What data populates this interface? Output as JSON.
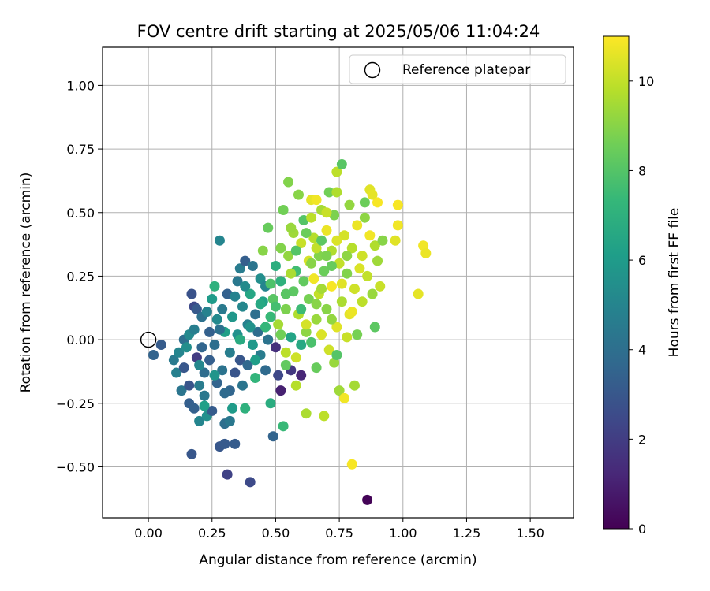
{
  "chart_data": {
    "type": "scatter",
    "title": "FOV centre drift starting at 2025/05/06 11:04:24",
    "xlabel": "Angular distance from reference (arcmin)",
    "ylabel": "Rotation from reference (arcmin)",
    "xlim": [
      -0.18,
      1.67
    ],
    "ylim": [
      -0.7,
      1.15
    ],
    "xticks": [
      0.0,
      0.25,
      0.5,
      0.75,
      1.0,
      1.25,
      1.5
    ],
    "xtick_labels": [
      "0.00",
      "0.25",
      "0.50",
      "0.75",
      "1.00",
      "1.25",
      "1.50"
    ],
    "yticks": [
      -0.5,
      -0.25,
      0.0,
      0.25,
      0.5,
      0.75,
      1.0
    ],
    "ytick_labels": [
      "−0.50",
      "−0.25",
      "0.00",
      "0.25",
      "0.50",
      "0.75",
      "1.00"
    ],
    "grid": true,
    "legend": {
      "position": "top-right",
      "label": "Reference platepar"
    },
    "reference_point": {
      "x": 0.0,
      "y": 0.0
    },
    "colorbar": {
      "label": "Hours from first FF file",
      "min": 0,
      "max": 11,
      "ticks": [
        0,
        2,
        4,
        6,
        8,
        10
      ],
      "tick_labels": [
        "0",
        "2",
        "4",
        "6",
        "8",
        "10"
      ],
      "colormap": "viridis"
    },
    "colormap_stops": [
      "#440154",
      "#482878",
      "#3e4989",
      "#31688e",
      "#26828e",
      "#1f9e89",
      "#35b779",
      "#6ece58",
      "#b5de2b",
      "#fde725"
    ],
    "points": [
      {
        "x": 0.02,
        "y": -0.06,
        "h": 3.5
      },
      {
        "x": 0.05,
        "y": -0.02,
        "h": 3.2
      },
      {
        "x": 0.1,
        "y": -0.08,
        "h": 4.5
      },
      {
        "x": 0.11,
        "y": -0.13,
        "h": 4.8
      },
      {
        "x": 0.12,
        "y": -0.05,
        "h": 5.0
      },
      {
        "x": 0.13,
        "y": -0.2,
        "h": 4.3
      },
      {
        "x": 0.14,
        "y": 0.0,
        "h": 4.0
      },
      {
        "x": 0.14,
        "y": -0.11,
        "h": 3.0
      },
      {
        "x": 0.15,
        "y": -0.03,
        "h": 5.4
      },
      {
        "x": 0.16,
        "y": 0.02,
        "h": 5.2
      },
      {
        "x": 0.16,
        "y": -0.25,
        "h": 3.3
      },
      {
        "x": 0.17,
        "y": 0.18,
        "h": 2.8
      },
      {
        "x": 0.17,
        "y": -0.45,
        "h": 3.0
      },
      {
        "x": 0.18,
        "y": 0.13,
        "h": 2.5
      },
      {
        "x": 0.18,
        "y": -0.27,
        "h": 3.4
      },
      {
        "x": 0.19,
        "y": 0.12,
        "h": 3.1
      },
      {
        "x": 0.19,
        "y": -0.07,
        "h": 2.0
      },
      {
        "x": 0.2,
        "y": -0.18,
        "h": 4.6
      },
      {
        "x": 0.2,
        "y": -0.32,
        "h": 5.0
      },
      {
        "x": 0.21,
        "y": -0.03,
        "h": 3.6
      },
      {
        "x": 0.21,
        "y": 0.09,
        "h": 4.1
      },
      {
        "x": 0.22,
        "y": -0.13,
        "h": 3.9
      },
      {
        "x": 0.22,
        "y": -0.22,
        "h": 4.4
      },
      {
        "x": 0.23,
        "y": 0.11,
        "h": 4.9
      },
      {
        "x": 0.23,
        "y": -0.3,
        "h": 5.5
      },
      {
        "x": 0.24,
        "y": -0.08,
        "h": 3.3
      },
      {
        "x": 0.25,
        "y": 0.16,
        "h": 6.0
      },
      {
        "x": 0.25,
        "y": -0.28,
        "h": 3.2
      },
      {
        "x": 0.26,
        "y": 0.21,
        "h": 7.0
      },
      {
        "x": 0.26,
        "y": -0.02,
        "h": 4.0
      },
      {
        "x": 0.27,
        "y": -0.17,
        "h": 3.5
      },
      {
        "x": 0.27,
        "y": 0.08,
        "h": 5.2
      },
      {
        "x": 0.28,
        "y": -0.42,
        "h": 3.0
      },
      {
        "x": 0.28,
        "y": 0.39,
        "h": 5.0
      },
      {
        "x": 0.29,
        "y": -0.12,
        "h": 4.2
      },
      {
        "x": 0.29,
        "y": 0.12,
        "h": 4.5
      },
      {
        "x": 0.3,
        "y": -0.33,
        "h": 4.0
      },
      {
        "x": 0.3,
        "y": 0.03,
        "h": 6.2
      },
      {
        "x": 0.3,
        "y": -0.41,
        "h": 3.1
      },
      {
        "x": 0.31,
        "y": -0.53,
        "h": 2.2
      },
      {
        "x": 0.31,
        "y": 0.18,
        "h": 3.4
      },
      {
        "x": 0.32,
        "y": -0.05,
        "h": 4.7
      },
      {
        "x": 0.32,
        "y": -0.2,
        "h": 3.6
      },
      {
        "x": 0.33,
        "y": 0.09,
        "h": 5.8
      },
      {
        "x": 0.33,
        "y": -0.27,
        "h": 6.0
      },
      {
        "x": 0.34,
        "y": -0.41,
        "h": 3.2
      },
      {
        "x": 0.34,
        "y": -0.13,
        "h": 2.9
      },
      {
        "x": 0.35,
        "y": 0.23,
        "h": 4.4
      },
      {
        "x": 0.35,
        "y": 0.02,
        "h": 5.5
      },
      {
        "x": 0.36,
        "y": 0.28,
        "h": 4.6
      },
      {
        "x": 0.36,
        "y": -0.08,
        "h": 3.0
      },
      {
        "x": 0.37,
        "y": 0.13,
        "h": 5.1
      },
      {
        "x": 0.37,
        "y": -0.18,
        "h": 4.3
      },
      {
        "x": 0.38,
        "y": 0.31,
        "h": 3.3
      },
      {
        "x": 0.38,
        "y": -0.27,
        "h": 7.0
      },
      {
        "x": 0.39,
        "y": 0.06,
        "h": 4.8
      },
      {
        "x": 0.39,
        "y": -0.1,
        "h": 3.7
      },
      {
        "x": 0.4,
        "y": -0.56,
        "h": 2.5
      },
      {
        "x": 0.4,
        "y": 0.18,
        "h": 6.5
      },
      {
        "x": 0.41,
        "y": 0.29,
        "h": 4.3
      },
      {
        "x": 0.41,
        "y": -0.02,
        "h": 5.9
      },
      {
        "x": 0.42,
        "y": 0.1,
        "h": 4.0
      },
      {
        "x": 0.42,
        "y": -0.15,
        "h": 7.2
      },
      {
        "x": 0.43,
        "y": 0.03,
        "h": 3.9
      },
      {
        "x": 0.44,
        "y": 0.24,
        "h": 5.4
      },
      {
        "x": 0.44,
        "y": -0.06,
        "h": 4.6
      },
      {
        "x": 0.45,
        "y": 0.35,
        "h": 9.0
      },
      {
        "x": 0.45,
        "y": 0.15,
        "h": 6.3
      },
      {
        "x": 0.46,
        "y": -0.12,
        "h": 3.8
      },
      {
        "x": 0.46,
        "y": 0.21,
        "h": 5.0
      },
      {
        "x": 0.47,
        "y": 0.0,
        "h": 4.2
      },
      {
        "x": 0.47,
        "y": 0.44,
        "h": 8.4
      },
      {
        "x": 0.48,
        "y": -0.25,
        "h": 6.8
      },
      {
        "x": 0.48,
        "y": 0.09,
        "h": 7.4
      },
      {
        "x": 0.49,
        "y": -0.38,
        "h": 3.5
      },
      {
        "x": 0.49,
        "y": 0.16,
        "h": 8.1
      },
      {
        "x": 0.5,
        "y": -0.03,
        "h": 1.5
      },
      {
        "x": 0.5,
        "y": 0.29,
        "h": 6.9
      },
      {
        "x": 0.51,
        "y": -0.14,
        "h": 2.4
      },
      {
        "x": 0.51,
        "y": 0.06,
        "h": 9.5
      },
      {
        "x": 0.52,
        "y": 0.23,
        "h": 7.0
      },
      {
        "x": 0.52,
        "y": -0.2,
        "h": 1.0
      },
      {
        "x": 0.53,
        "y": 0.51,
        "h": 8.6
      },
      {
        "x": 0.53,
        "y": -0.34,
        "h": 7.4
      },
      {
        "x": 0.54,
        "y": 0.12,
        "h": 8.8
      },
      {
        "x": 0.54,
        "y": -0.05,
        "h": 9.9
      },
      {
        "x": 0.55,
        "y": 0.33,
        "h": 9.2
      },
      {
        "x": 0.55,
        "y": 0.62,
        "h": 8.9
      },
      {
        "x": 0.56,
        "y": 0.01,
        "h": 6.4
      },
      {
        "x": 0.56,
        "y": -0.12,
        "h": 1.8
      },
      {
        "x": 0.57,
        "y": 0.42,
        "h": 9.4
      },
      {
        "x": 0.57,
        "y": 0.19,
        "h": 8.2
      },
      {
        "x": 0.58,
        "y": -0.07,
        "h": 10.2
      },
      {
        "x": 0.58,
        "y": 0.27,
        "h": 7.6
      },
      {
        "x": 0.59,
        "y": 0.57,
        "h": 9.0
      },
      {
        "x": 0.59,
        "y": 0.1,
        "h": 9.7
      },
      {
        "x": 0.6,
        "y": -0.14,
        "h": 1.2
      },
      {
        "x": 0.6,
        "y": 0.38,
        "h": 10.1
      },
      {
        "x": 0.61,
        "y": 0.23,
        "h": 8.3
      },
      {
        "x": 0.61,
        "y": 0.47,
        "h": 8.0
      },
      {
        "x": 0.62,
        "y": 0.03,
        "h": 9.1
      },
      {
        "x": 0.62,
        "y": -0.29,
        "h": 9.6
      },
      {
        "x": 0.63,
        "y": 0.31,
        "h": 10.3
      },
      {
        "x": 0.63,
        "y": 0.16,
        "h": 8.7
      },
      {
        "x": 0.64,
        "y": 0.55,
        "h": 10.6
      },
      {
        "x": 0.64,
        "y": -0.01,
        "h": 7.8
      },
      {
        "x": 0.65,
        "y": 0.4,
        "h": 9.8
      },
      {
        "x": 0.65,
        "y": 0.24,
        "h": 10.8
      },
      {
        "x": 0.66,
        "y": 0.08,
        "h": 9.3
      },
      {
        "x": 0.66,
        "y": -0.11,
        "h": 8.4
      },
      {
        "x": 0.67,
        "y": 0.33,
        "h": 8.9
      },
      {
        "x": 0.67,
        "y": 0.18,
        "h": 10.0
      },
      {
        "x": 0.68,
        "y": 0.51,
        "h": 9.5
      },
      {
        "x": 0.68,
        "y": 0.02,
        "h": 10.4
      },
      {
        "x": 0.69,
        "y": -0.3,
        "h": 9.9
      },
      {
        "x": 0.69,
        "y": 0.27,
        "h": 8.5
      },
      {
        "x": 0.7,
        "y": 0.43,
        "h": 10.7
      },
      {
        "x": 0.7,
        "y": 0.12,
        "h": 9.0
      },
      {
        "x": 0.71,
        "y": 0.58,
        "h": 8.6
      },
      {
        "x": 0.71,
        "y": -0.04,
        "h": 10.2
      },
      {
        "x": 0.72,
        "y": 0.35,
        "h": 9.7
      },
      {
        "x": 0.72,
        "y": 0.21,
        "h": 10.9
      },
      {
        "x": 0.73,
        "y": -0.09,
        "h": 9.3
      },
      {
        "x": 0.73,
        "y": 0.49,
        "h": 8.8
      },
      {
        "x": 0.74,
        "y": 0.66,
        "h": 9.9
      },
      {
        "x": 0.74,
        "y": 0.05,
        "h": 10.5
      },
      {
        "x": 0.75,
        "y": -0.2,
        "h": 9.4
      },
      {
        "x": 0.75,
        "y": 0.3,
        "h": 10.0
      },
      {
        "x": 0.76,
        "y": 0.69,
        "h": 8.1
      },
      {
        "x": 0.76,
        "y": 0.15,
        "h": 9.6
      },
      {
        "x": 0.77,
        "y": -0.23,
        "h": 10.8
      },
      {
        "x": 0.77,
        "y": 0.41,
        "h": 10.3
      },
      {
        "x": 0.78,
        "y": 0.26,
        "h": 8.9
      },
      {
        "x": 0.78,
        "y": 0.01,
        "h": 10.1
      },
      {
        "x": 0.79,
        "y": 0.53,
        "h": 9.2
      },
      {
        "x": 0.79,
        "y": 0.1,
        "h": 10.6
      },
      {
        "x": 0.8,
        "y": -0.49,
        "h": 10.9
      },
      {
        "x": 0.8,
        "y": 0.36,
        "h": 9.8
      },
      {
        "x": 0.81,
        "y": 0.2,
        "h": 10.2
      },
      {
        "x": 0.81,
        "y": -0.18,
        "h": 9.5
      },
      {
        "x": 0.82,
        "y": 0.45,
        "h": 10.7
      },
      {
        "x": 0.82,
        "y": 0.02,
        "h": 8.7
      },
      {
        "x": 0.83,
        "y": 0.28,
        "h": 10.4
      },
      {
        "x": 0.84,
        "y": 0.15,
        "h": 9.9
      },
      {
        "x": 0.85,
        "y": 0.48,
        "h": 9.1
      },
      {
        "x": 0.85,
        "y": 0.54,
        "h": 8.5
      },
      {
        "x": 0.86,
        "y": -0.63,
        "h": 0.1
      },
      {
        "x": 0.86,
        "y": 0.25,
        "h": 10.0
      },
      {
        "x": 0.87,
        "y": 0.59,
        "h": 10.5
      },
      {
        "x": 0.87,
        "y": 0.41,
        "h": 10.8
      },
      {
        "x": 0.88,
        "y": 0.18,
        "h": 9.3
      },
      {
        "x": 0.88,
        "y": 0.57,
        "h": 10.6
      },
      {
        "x": 0.89,
        "y": 0.05,
        "h": 8.2
      },
      {
        "x": 0.89,
        "y": 0.37,
        "h": 9.7
      },
      {
        "x": 0.9,
        "y": 0.54,
        "h": 10.9
      },
      {
        "x": 0.9,
        "y": 0.31,
        "h": 9.4
      },
      {
        "x": 0.91,
        "y": 0.21,
        "h": 10.1
      },
      {
        "x": 0.92,
        "y": 0.39,
        "h": 9.0
      },
      {
        "x": 0.97,
        "y": 0.39,
        "h": 10.5
      },
      {
        "x": 0.98,
        "y": 0.45,
        "h": 10.8
      },
      {
        "x": 0.98,
        "y": 0.53,
        "h": 10.9
      },
      {
        "x": 1.06,
        "y": 0.18,
        "h": 10.6
      },
      {
        "x": 1.08,
        "y": 0.37,
        "h": 10.8
      },
      {
        "x": 1.09,
        "y": 0.34,
        "h": 10.7
      },
      {
        "x": 0.58,
        "y": 0.35,
        "h": 8.0
      },
      {
        "x": 0.6,
        "y": 0.12,
        "h": 7.5
      },
      {
        "x": 0.62,
        "y": 0.42,
        "h": 8.5
      },
      {
        "x": 0.64,
        "y": 0.3,
        "h": 9.0
      },
      {
        "x": 0.66,
        "y": 0.36,
        "h": 10.0
      },
      {
        "x": 0.68,
        "y": 0.2,
        "h": 9.5
      },
      {
        "x": 0.7,
        "y": 0.33,
        "h": 8.8
      },
      {
        "x": 0.72,
        "y": 0.08,
        "h": 9.2
      },
      {
        "x": 0.74,
        "y": 0.39,
        "h": 10.4
      },
      {
        "x": 0.56,
        "y": 0.26,
        "h": 9.6
      },
      {
        "x": 0.54,
        "y": 0.18,
        "h": 8.1
      },
      {
        "x": 0.52,
        "y": 0.36,
        "h": 8.9
      },
      {
        "x": 0.5,
        "y": 0.13,
        "h": 7.7
      },
      {
        "x": 0.48,
        "y": 0.22,
        "h": 7.9
      },
      {
        "x": 0.46,
        "y": 0.05,
        "h": 7.3
      },
      {
        "x": 0.44,
        "y": 0.14,
        "h": 6.6
      },
      {
        "x": 0.42,
        "y": -0.08,
        "h": 6.1
      },
      {
        "x": 0.4,
        "y": 0.05,
        "h": 5.6
      },
      {
        "x": 0.38,
        "y": 0.21,
        "h": 5.3
      },
      {
        "x": 0.36,
        "y": 0.0,
        "h": 6.7
      },
      {
        "x": 0.34,
        "y": 0.17,
        "h": 4.9
      },
      {
        "x": 0.32,
        "y": -0.32,
        "h": 4.4
      },
      {
        "x": 0.3,
        "y": -0.21,
        "h": 3.8
      },
      {
        "x": 0.28,
        "y": 0.04,
        "h": 4.1
      },
      {
        "x": 0.26,
        "y": -0.14,
        "h": 5.7
      },
      {
        "x": 0.24,
        "y": 0.03,
        "h": 3.4
      },
      {
        "x": 0.22,
        "y": -0.26,
        "h": 6.2
      },
      {
        "x": 0.2,
        "y": -0.1,
        "h": 5.1
      },
      {
        "x": 0.18,
        "y": 0.04,
        "h": 4.7
      },
      {
        "x": 0.16,
        "y": -0.18,
        "h": 2.9
      },
      {
        "x": 0.6,
        "y": -0.02,
        "h": 6.6
      },
      {
        "x": 0.62,
        "y": 0.06,
        "h": 10.3
      },
      {
        "x": 0.64,
        "y": 0.48,
        "h": 9.9
      },
      {
        "x": 0.66,
        "y": 0.14,
        "h": 9.0
      },
      {
        "x": 0.7,
        "y": 0.5,
        "h": 10.1
      },
      {
        "x": 0.72,
        "y": 0.29,
        "h": 8.4
      },
      {
        "x": 0.76,
        "y": 0.22,
        "h": 10.5
      },
      {
        "x": 0.78,
        "y": 0.33,
        "h": 9.1
      },
      {
        "x": 0.8,
        "y": 0.11,
        "h": 10.7
      },
      {
        "x": 0.84,
        "y": 0.33,
        "h": 10.2
      },
      {
        "x": 0.56,
        "y": 0.44,
        "h": 9.3
      },
      {
        "x": 0.58,
        "y": -0.18,
        "h": 9.8
      },
      {
        "x": 0.54,
        "y": -0.1,
        "h": 8.3
      },
      {
        "x": 0.52,
        "y": 0.02,
        "h": 8.6
      },
      {
        "x": 0.66,
        "y": 0.55,
        "h": 10.8
      },
      {
        "x": 0.68,
        "y": 0.39,
        "h": 8.2
      },
      {
        "x": 0.74,
        "y": 0.58,
        "h": 9.7
      },
      {
        "x": 0.74,
        "y": -0.06,
        "h": 8.0
      }
    ]
  }
}
